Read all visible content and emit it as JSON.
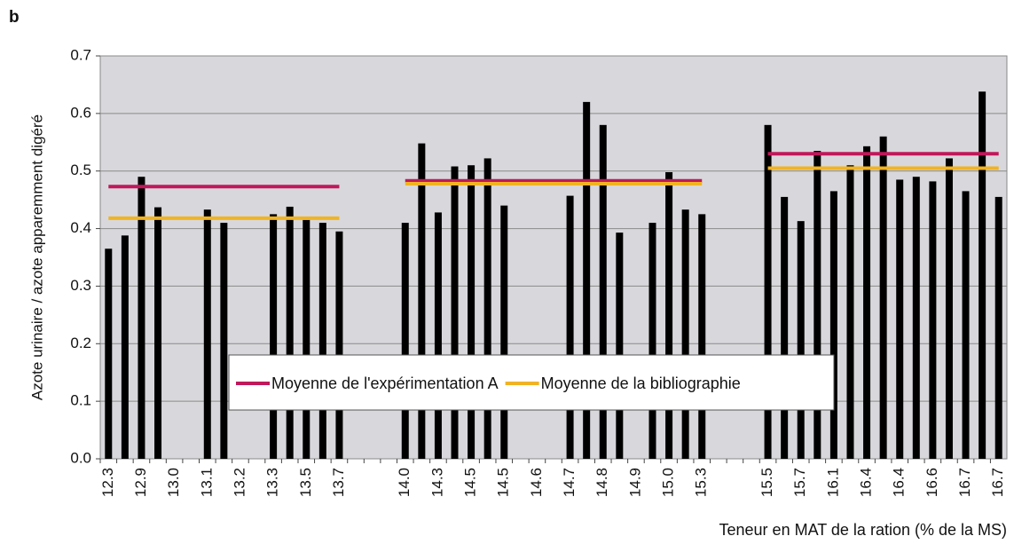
{
  "chart_data": {
    "type": "bar",
    "panel_label": "b",
    "y_label": "Azote urinaire / azote apparemment digéré",
    "x_label": "Teneur en MAT de la ration (% de la MS)",
    "categories": [
      "12.3",
      null,
      "12.9",
      null,
      "13.0",
      null,
      "13.1",
      null,
      "13.2",
      null,
      "13.3",
      null,
      "13.5",
      null,
      "13.7",
      null,
      null,
      null,
      "14.0",
      null,
      "14.3",
      null,
      "14.5",
      null,
      "14.5",
      null,
      "14.6",
      null,
      "14.7",
      null,
      "14.8",
      null,
      "14.9",
      null,
      "15.0",
      null,
      "15.3",
      null,
      null,
      null,
      "15.5",
      null,
      "15.7",
      null,
      "16.1",
      null,
      "16.4",
      null,
      "16.4",
      null,
      "16.6",
      null,
      "16.7",
      null,
      "16.7"
    ],
    "values": [
      0.365,
      0.388,
      0.49,
      0.437,
      null,
      null,
      0.433,
      0.41,
      null,
      null,
      0.425,
      0.438,
      0.415,
      0.41,
      0.395,
      null,
      null,
      null,
      0.41,
      0.548,
      0.428,
      0.508,
      0.51,
      0.522,
      0.44,
      null,
      null,
      null,
      0.457,
      0.62,
      0.58,
      0.393,
      null,
      0.41,
      0.498,
      0.433,
      0.425,
      null,
      null,
      null,
      0.58,
      0.455,
      0.413,
      0.535,
      0.465,
      0.51,
      0.543,
      0.56,
      0.485,
      0.49,
      0.482,
      0.522,
      0.465,
      0.638,
      0.455
    ],
    "color": "#000000",
    "series": [
      {
        "name": "Moyenne de l'expérimentation A",
        "color": "#c0185a",
        "type": "line",
        "values": [
          0.473,
          0.473,
          0.473,
          0.473,
          0.473,
          0.473,
          0.473,
          0.473,
          0.473,
          0.473,
          0.473,
          0.473,
          0.473,
          0.473,
          0.473,
          null,
          null,
          null,
          0.483,
          0.483,
          0.483,
          0.483,
          0.483,
          0.483,
          0.483,
          0.483,
          0.483,
          0.483,
          0.483,
          0.483,
          0.483,
          0.483,
          0.483,
          0.483,
          0.483,
          0.483,
          0.483,
          null,
          null,
          null,
          0.53,
          0.53,
          0.53,
          0.53,
          0.53,
          0.53,
          0.53,
          0.53,
          0.53,
          0.53,
          0.53,
          0.53,
          0.53,
          0.53,
          0.53
        ]
      },
      {
        "name": "Moyenne de la bibliographie",
        "color": "#f0b323",
        "type": "line",
        "values": [
          0.418,
          0.418,
          0.418,
          0.418,
          0.418,
          0.418,
          0.418,
          0.418,
          0.418,
          0.418,
          0.418,
          0.418,
          0.418,
          0.418,
          0.418,
          null,
          null,
          null,
          0.478,
          0.478,
          0.478,
          0.478,
          0.478,
          0.478,
          0.478,
          0.478,
          0.478,
          0.478,
          0.478,
          0.478,
          0.478,
          0.478,
          0.478,
          0.478,
          0.478,
          0.478,
          0.478,
          null,
          null,
          null,
          0.505,
          0.505,
          0.505,
          0.505,
          0.505,
          0.505,
          0.505,
          0.505,
          0.505,
          0.505,
          0.505,
          0.505,
          0.505,
          0.505,
          0.505
        ]
      }
    ],
    "ylim": [
      0,
      0.7
    ],
    "yticks": [
      {
        "value": 0,
        "label": "0.0"
      },
      0.1,
      0.2,
      0.3,
      0.4,
      0.5,
      0.6,
      0.7
    ],
    "grid": true,
    "legend": "bottom"
  }
}
